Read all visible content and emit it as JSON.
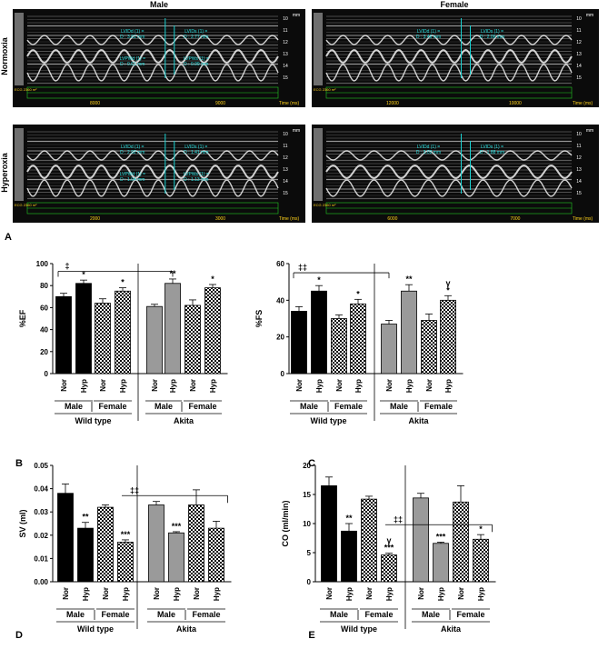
{
  "figure": {
    "panel_letters": [
      "A",
      "B",
      "C",
      "D",
      "E"
    ],
    "echo": {
      "col_titles": [
        "Male",
        "Female"
      ],
      "row_titles": [
        "Normoxia",
        "Hyperoxia"
      ],
      "time_unit": "Time (ms)",
      "depth_unit": "mm",
      "depth_ticks": [
        "10",
        "11",
        "12",
        "13",
        "14",
        "15"
      ],
      "panels": [
        {
          "id": "male-normoxia",
          "time_ticks": [
            "8000",
            "9000"
          ],
          "meas_upper": [
            "LVIDd (1) =\nD : 3.81 mm",
            "LVIDs (1) =\nD : 2.77 mm"
          ],
          "meas_lower": [
            "LVPWd (1) =\nD : 0.61 mm",
            "LVPWs (1) =\nD : 0.99 mm"
          ],
          "ecg": "ECG  2360 m²"
        },
        {
          "id": "female-normoxia",
          "time_ticks": [
            "12000",
            "10000"
          ],
          "meas_upper": [
            "LVIDd (1) =\nD : 3.46 mm",
            "LVIDs (1) =\nD : 2.06 mm"
          ],
          "meas_lower": [],
          "ecg": "ECG  2360 m²"
        },
        {
          "id": "male-hyperoxia",
          "time_ticks": [
            "2000",
            "3000"
          ],
          "meas_upper": [
            "LVIDd (1) =\nD : 2.92 mm",
            "LVIDs (1) =\nD : 1.41 mm"
          ],
          "meas_lower": [
            "LVPWd (1) =\nD : 1.04 mm",
            "LVPWs (1) =\nD : 1.13 mm"
          ],
          "ecg": "ECG  2360 m²"
        },
        {
          "id": "female-hyperoxia",
          "time_ticks": [
            "6000",
            "7000"
          ],
          "meas_upper": [
            "LVIDd (1) =\nD : 3.02 mm",
            "LVIDs (1) =\nD : 1.88 mm"
          ],
          "meas_lower": [],
          "ecg": "ECG  2360 m²"
        }
      ]
    }
  },
  "chart_data": [
    {
      "panel": "B",
      "type": "bar",
      "ylabel": "%EF",
      "ylim": [
        0,
        100
      ],
      "yticks": [
        0,
        20,
        40,
        60,
        80,
        100
      ],
      "categories": [
        "Nor",
        "Hyp",
        "Nor",
        "Hyp",
        "Nor",
        "Hyp",
        "Nor",
        "Hyp"
      ],
      "values": [
        70,
        82,
        64,
        75,
        61,
        82,
        62,
        78
      ],
      "errors": [
        3,
        3,
        4,
        3,
        2,
        4,
        5,
        3
      ],
      "fills": [
        "black",
        "black",
        "checker",
        "checker",
        "gray",
        "gray",
        "checker",
        "checker"
      ],
      "marks": [
        "",
        "*",
        "",
        "*",
        "",
        "**",
        "",
        "*"
      ],
      "bracket": {
        "label": "‡",
        "y": 93,
        "from": 0,
        "to": 5
      },
      "sex_labels": [
        "Male",
        "Female",
        "Male",
        "Female"
      ],
      "group_labels": [
        "Wild type",
        "Akita"
      ]
    },
    {
      "panel": "C",
      "type": "bar",
      "ylabel": "%FS",
      "ylim": [
        0,
        60
      ],
      "yticks": [
        0,
        20,
        40,
        60
      ],
      "categories": [
        "Nor",
        "Hyp",
        "Nor",
        "Hyp",
        "Nor",
        "Hyp",
        "Nor",
        "Hyp"
      ],
      "values": [
        34,
        45,
        30,
        38,
        27,
        45,
        29,
        40
      ],
      "errors": [
        2.5,
        3,
        2,
        2.5,
        2,
        3.5,
        3.5,
        2.5
      ],
      "fills": [
        "black",
        "black",
        "checker",
        "checker",
        "gray",
        "gray",
        "checker",
        "checker"
      ],
      "marks": [
        "",
        "*",
        "",
        "*",
        "",
        "**",
        "",
        "γ\n*"
      ],
      "bracket": {
        "label": "‡‡",
        "y": 55,
        "from": 0,
        "to": 4
      },
      "sex_labels": [
        "Male",
        "Female",
        "Male",
        "Female"
      ],
      "group_labels": [
        "Wild type",
        "Akita"
      ]
    },
    {
      "panel": "D",
      "type": "bar",
      "ylabel": "SV (ml)",
      "ylim": [
        0,
        0.05
      ],
      "yticks": [
        0.0,
        0.01,
        0.02,
        0.03,
        0.04,
        0.05
      ],
      "categories": [
        "Nor",
        "Hyp",
        "Nor",
        "Hyp",
        "Nor",
        "Hyp",
        "Nor",
        "Hyp"
      ],
      "values": [
        0.038,
        0.023,
        0.032,
        0.017,
        0.033,
        0.021,
        0.033,
        0.023
      ],
      "errors": [
        0.004,
        0.0025,
        0.001,
        0.001,
        0.0015,
        0.0005,
        0.0065,
        0.003
      ],
      "fills": [
        "black",
        "black",
        "checker",
        "checker",
        "gray",
        "gray",
        "checker",
        "checker"
      ],
      "marks": [
        "",
        "**",
        "",
        "***",
        "",
        "***",
        "",
        ""
      ],
      "bracket": {
        "label": "‡‡",
        "y": 0.037,
        "from": 3,
        "to": 7,
        "type": "right"
      },
      "sex_labels": [
        "Male",
        "Female",
        "Male",
        "Female"
      ],
      "group_labels": [
        "Wild type",
        "Akita"
      ]
    },
    {
      "panel": "E",
      "type": "bar",
      "ylabel": "CO (ml/min)",
      "ylim": [
        0,
        20
      ],
      "yticks": [
        0,
        5,
        10,
        15,
        20
      ],
      "categories": [
        "Nor",
        "Hyp",
        "Nor",
        "Hyp",
        "Nor",
        "Hyp",
        "Nor",
        "Hyp"
      ],
      "values": [
        16.5,
        8.7,
        14.2,
        4.6,
        14.4,
        6.6,
        13.7,
        7.3
      ],
      "errors": [
        1.5,
        1.3,
        0.5,
        0.3,
        0.8,
        0.2,
        2.8,
        0.8
      ],
      "fills": [
        "black",
        "black",
        "checker",
        "checker",
        "gray",
        "gray",
        "checker",
        "checker"
      ],
      "marks": [
        "",
        "**",
        "",
        "γ\n***",
        "",
        "***",
        "",
        "*"
      ],
      "bracket": {
        "label": "‡‡",
        "y": 9.8,
        "from": 3,
        "to": 7,
        "type": "right"
      },
      "sex_labels": [
        "Male",
        "Female",
        "Male",
        "Female"
      ],
      "group_labels": [
        "Wild type",
        "Akita"
      ]
    }
  ]
}
